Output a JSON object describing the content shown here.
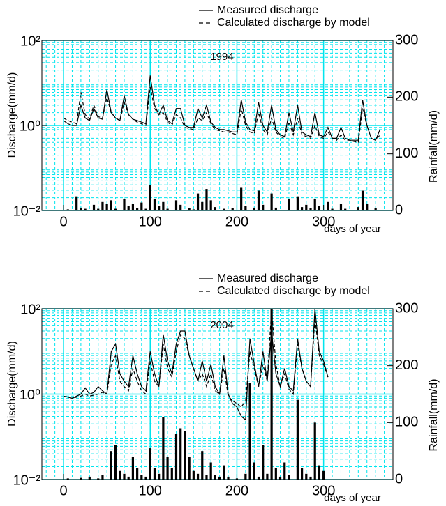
{
  "chart_data": [
    {
      "type": "line",
      "annotation": "1994",
      "y_label": "Discharge(mm/d)",
      "y2_label": "Rainfall(mm/d)",
      "x_label": "days of year",
      "xlim": [
        -25,
        380
      ],
      "xticks": [
        0,
        100,
        200,
        300
      ],
      "ylim": [
        0.01,
        100
      ],
      "log_y": true,
      "yticks": [
        {
          "value": 0.01,
          "label": "10⁻²"
        },
        {
          "value": 1,
          "label": "10⁰"
        },
        {
          "value": 100,
          "label": "10²"
        }
      ],
      "y2lim": [
        0,
        300
      ],
      "y2ticks": [
        0,
        100,
        200,
        300
      ],
      "grid": true,
      "grid_color": "#00e5ee",
      "legend": "top-right",
      "x": [
        0,
        5,
        10,
        15,
        20,
        25,
        30,
        35,
        40,
        45,
        50,
        55,
        60,
        65,
        70,
        75,
        80,
        85,
        90,
        95,
        100,
        105,
        110,
        115,
        120,
        125,
        130,
        135,
        140,
        145,
        150,
        155,
        160,
        165,
        170,
        175,
        180,
        185,
        190,
        195,
        200,
        205,
        210,
        215,
        220,
        225,
        230,
        235,
        240,
        245,
        250,
        255,
        260,
        265,
        270,
        275,
        280,
        285,
        290,
        295,
        300,
        305,
        310,
        315,
        320,
        325,
        330,
        335,
        340,
        345,
        350,
        355,
        360,
        365
      ],
      "series": [
        {
          "name": "Measured discharge",
          "color": "#000000",
          "linestyle": "solid",
          "values": [
            1.3,
            1.1,
            1.0,
            1.0,
            3.0,
            1.5,
            1.3,
            2.5,
            1.5,
            1.4,
            7.0,
            2.0,
            1.5,
            1.3,
            5.0,
            1.8,
            1.4,
            1.3,
            1.2,
            1.1,
            15,
            3.0,
            1.8,
            3.0,
            1.3,
            1.1,
            2.5,
            2.5,
            1.0,
            0.9,
            0.9,
            2.5,
            1.5,
            3.0,
            1.2,
            0.9,
            0.8,
            0.8,
            0.75,
            0.7,
            0.7,
            4.0,
            1.2,
            0.8,
            0.75,
            3.5,
            1.0,
            0.7,
            3.0,
            0.8,
            0.6,
            0.55,
            2.0,
            0.7,
            3.0,
            0.7,
            0.6,
            0.55,
            2.0,
            0.6,
            0.55,
            0.9,
            0.5,
            0.5,
            0.9,
            0.5,
            0.45,
            0.45,
            0.45,
            4.0,
            1.0,
            0.5,
            0.45,
            0.8
          ]
        },
        {
          "name": "Calculated discharge by model",
          "color": "#000000",
          "linestyle": "dashed",
          "values": [
            1.5,
            1.3,
            1.2,
            1.1,
            6.0,
            1.8,
            1.4,
            3.0,
            1.6,
            1.5,
            4.5,
            2.0,
            1.5,
            1.3,
            3.5,
            1.8,
            1.4,
            1.2,
            1.1,
            1.0,
            8,
            2.5,
            1.8,
            2.0,
            1.2,
            1.0,
            1.8,
            1.5,
            0.9,
            0.85,
            0.8,
            1.5,
            1.3,
            2.0,
            1.1,
            0.8,
            0.75,
            0.7,
            0.7,
            0.65,
            0.6,
            2.5,
            1.0,
            0.7,
            0.65,
            2.0,
            0.8,
            0.6,
            1.5,
            0.7,
            0.55,
            0.5,
            1.2,
            0.6,
            1.5,
            0.6,
            0.55,
            0.5,
            1.0,
            0.55,
            0.5,
            0.7,
            0.5,
            0.45,
            0.6,
            0.45,
            0.45,
            0.42,
            0.4,
            2.5,
            1.0,
            0.5,
            0.45,
            0.6
          ]
        },
        {
          "type": "bar",
          "axis": "y2",
          "color": "#000000",
          "values": [
            0,
            2,
            0,
            25,
            5,
            3,
            0,
            10,
            3,
            15,
            12,
            18,
            3,
            0,
            20,
            8,
            12,
            4,
            14,
            3,
            45,
            20,
            8,
            15,
            3,
            0,
            18,
            10,
            0,
            4,
            2,
            30,
            15,
            38,
            18,
            6,
            0,
            3,
            0,
            4,
            0,
            40,
            8,
            0,
            5,
            35,
            10,
            0,
            30,
            5,
            0,
            0,
            20,
            0,
            25,
            6,
            10,
            4,
            20,
            8,
            0,
            15,
            3,
            0,
            12,
            3,
            0,
            0,
            6,
            35,
            12,
            0,
            4,
            0
          ]
        }
      ]
    },
    {
      "type": "line",
      "annotation": "2004",
      "y_label": "Discharge(mm/d)",
      "y2_label": "Rainfall(mm/d)",
      "x_label": "days of year",
      "xlim": [
        -25,
        380
      ],
      "xticks": [
        0,
        100,
        200,
        300
      ],
      "ylim": [
        0.01,
        100
      ],
      "log_y": true,
      "yticks": [
        {
          "value": 0.01,
          "label": "10⁻²"
        },
        {
          "value": 1,
          "label": "10⁰"
        },
        {
          "value": 100,
          "label": "10²"
        }
      ],
      "y2lim": [
        0,
        300
      ],
      "y2ticks": [
        0,
        100,
        200,
        300
      ],
      "grid": true,
      "grid_color": "#00e5ee",
      "legend": "top-right",
      "x": [
        0,
        5,
        10,
        15,
        20,
        25,
        30,
        35,
        40,
        45,
        50,
        55,
        60,
        65,
        70,
        75,
        80,
        85,
        90,
        95,
        100,
        105,
        110,
        115,
        120,
        125,
        130,
        135,
        140,
        145,
        150,
        155,
        160,
        165,
        170,
        175,
        180,
        185,
        190,
        195,
        200,
        205,
        210,
        215,
        220,
        225,
        230,
        235,
        240,
        245,
        250,
        255,
        260,
        265,
        270,
        275,
        280,
        285,
        290,
        295,
        300,
        305
      ],
      "series": [
        {
          "name": "Measured discharge",
          "color": "#000000",
          "linestyle": "solid",
          "values": [
            0.9,
            0.85,
            0.8,
            0.9,
            1.0,
            1.4,
            1.0,
            1.1,
            1.5,
            1.2,
            1.0,
            10,
            15,
            3,
            2,
            1.5,
            8,
            3,
            1.5,
            1.2,
            10,
            3,
            1.5,
            25,
            6,
            3,
            15,
            30,
            30,
            8,
            4,
            2,
            6,
            2,
            5,
            1.5,
            1.0,
            8,
            1.0,
            0.6,
            0.5,
            0.3,
            0.25,
            20,
            5,
            1.5,
            10,
            2,
            30,
            3,
            1.5,
            4,
            1.5,
            1.2,
            20,
            4,
            2,
            1.5,
            100,
            10,
            6,
            2.5
          ]
        },
        {
          "name": "Calculated discharge by model",
          "color": "#000000",
          "linestyle": "dashed",
          "values": [
            0.9,
            0.85,
            0.8,
            0.85,
            0.9,
            1.0,
            0.9,
            0.95,
            1.0,
            1.1,
            1.0,
            5,
            8,
            2,
            1.5,
            1.2,
            4,
            2,
            1.2,
            1.0,
            6,
            2,
            1.5,
            15,
            4,
            2.5,
            10,
            25,
            20,
            8,
            4,
            2,
            3,
            1.5,
            3,
            1.2,
            1.0,
            4,
            0.9,
            0.7,
            0.6,
            0.5,
            0.7,
            10,
            4,
            1.5,
            5,
            2,
            100,
            5,
            1.5,
            3,
            1.3,
            1.0,
            15,
            4,
            2,
            1.5,
            60,
            8,
            5,
            2.5
          ]
        },
        {
          "type": "bar",
          "axis": "y2",
          "color": "#000000",
          "values": [
            0,
            2,
            0,
            0,
            3,
            0,
            5,
            0,
            2,
            8,
            0,
            50,
            60,
            15,
            10,
            5,
            40,
            20,
            8,
            5,
            55,
            20,
            10,
            110,
            40,
            20,
            80,
            90,
            85,
            40,
            15,
            10,
            50,
            8,
            30,
            8,
            5,
            25,
            5,
            0,
            2,
            0,
            10,
            170,
            30,
            5,
            60,
            10,
            300,
            20,
            5,
            30,
            8,
            0,
            140,
            20,
            10,
            5,
            100,
            25,
            15,
            0
          ]
        }
      ]
    }
  ]
}
